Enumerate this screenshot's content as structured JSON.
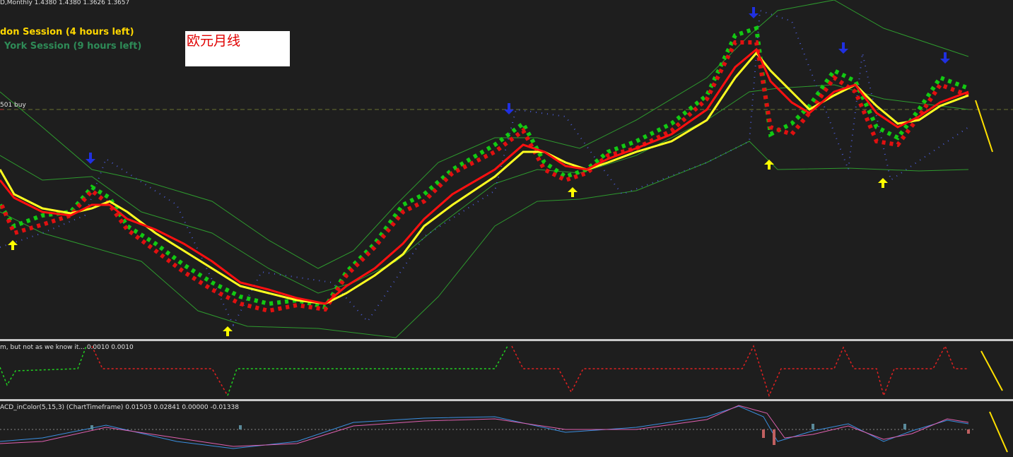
{
  "header": {
    "symbol_line": "D,Monthly  1.4380 1.4380 1.3626 1.3657",
    "london_session": "don Session (4 hours left)",
    "newyork_session": "York Session (9 hours left)",
    "note": "欧元月线",
    "level_label": "501 buy"
  },
  "panels": {
    "signal_indicator": "m, but not as we know it...  0.0010 0.0010",
    "macd_indicator": "ACD_inColor(5,15,3) (ChartTimeframe) 0.01503 0.02841 0.00000 -0.01338"
  }
}
